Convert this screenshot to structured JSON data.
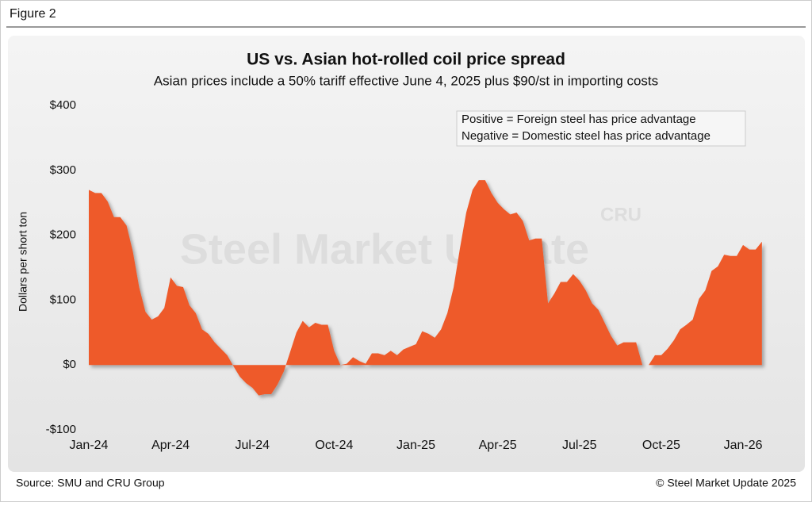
{
  "figure_label": "Figure 2",
  "chart_data": {
    "type": "area",
    "title": "US vs. Asian hot-rolled coil price spread",
    "subtitle": "Asian prices include a 50% tariff effective June 4, 2025 plus $90/st in importing costs",
    "y_label": "Dollars per short ton",
    "annotations": [
      "Positive = Foreign steel has price advantage",
      "Negative = Domestic steel has price advantage"
    ],
    "watermark": [
      "Steel Market Update",
      "CRU"
    ],
    "color": "#ee5a2b",
    "ylim": [
      -100,
      400
    ],
    "yticks": [
      {
        "value": -100,
        "label": "-$100"
      },
      {
        "value": 0,
        "label": "$0"
      },
      {
        "value": 100,
        "label": "$100"
      },
      {
        "value": 200,
        "label": "$200"
      },
      {
        "value": 300,
        "label": "$300"
      },
      {
        "value": 400,
        "label": "$400"
      }
    ],
    "categories": [
      "Jan-24",
      null,
      null,
      null,
      null,
      null,
      null,
      null,
      null,
      null,
      null,
      null,
      null,
      "Apr-24",
      null,
      null,
      null,
      null,
      null,
      null,
      null,
      null,
      null,
      null,
      null,
      null,
      "Jul-24",
      null,
      null,
      null,
      null,
      null,
      null,
      null,
      null,
      null,
      null,
      null,
      null,
      "Oct-24",
      null,
      null,
      null,
      null,
      null,
      null,
      null,
      null,
      null,
      null,
      null,
      null,
      "Jan-25",
      null,
      null,
      null,
      null,
      null,
      null,
      null,
      null,
      null,
      null,
      null,
      null,
      "Apr-25",
      null,
      null,
      null,
      null,
      null,
      null,
      null,
      null,
      null,
      null,
      null,
      null,
      "Jul-25",
      null,
      null,
      null,
      null,
      null,
      null,
      null,
      null,
      null,
      null,
      null,
      null,
      "Oct-25",
      null,
      null,
      null,
      null,
      null,
      null,
      null,
      null,
      null,
      null,
      null,
      null,
      "Jan-26",
      null,
      null,
      null
    ],
    "values": [
      270,
      265,
      265,
      252,
      228,
      228,
      215,
      175,
      120,
      82,
      70,
      75,
      88,
      135,
      122,
      120,
      92,
      80,
      55,
      48,
      35,
      25,
      15,
      -2,
      -18,
      -28,
      -35,
      -47,
      -45,
      -45,
      -30,
      -10,
      20,
      50,
      68,
      58,
      65,
      62,
      62,
      22,
      0,
      2,
      12,
      6,
      2,
      18,
      18,
      15,
      22,
      15,
      24,
      28,
      32,
      52,
      48,
      42,
      55,
      80,
      120,
      180,
      235,
      270,
      285,
      285,
      265,
      250,
      240,
      232,
      235,
      222,
      192,
      195,
      195,
      95,
      110,
      128,
      128,
      140,
      130,
      115,
      95,
      85,
      65,
      45,
      30,
      35,
      35,
      35,
      0,
      0,
      15,
      15,
      25,
      38,
      55,
      62,
      70,
      102,
      115,
      145,
      152,
      170,
      168,
      168,
      185,
      178,
      178,
      190
    ]
  },
  "source": "Source: SMU and CRU Group",
  "copyright": "© Steel Market Update 2025"
}
